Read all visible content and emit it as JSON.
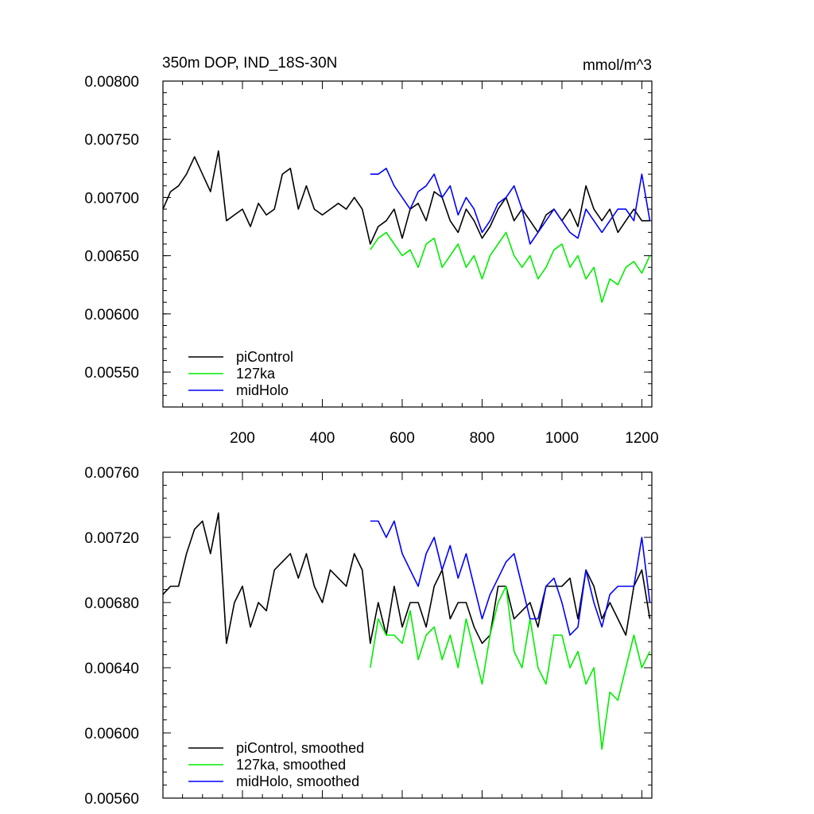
{
  "colors": {
    "piControl": "#000000",
    "127ka": "#00ee00",
    "midHolo": "#0000ff"
  },
  "chart_data": [
    {
      "type": "line",
      "title": "350m DOP, IND_18S-30N",
      "units": "mmol/m^3",
      "xlim": [
        1,
        1225
      ],
      "ylim": [
        0.0052,
        0.008
      ],
      "xticks": [
        200,
        400,
        600,
        800,
        1000,
        1200
      ],
      "yticks": [
        0.0055,
        0.006,
        0.0065,
        0.007,
        0.0075,
        0.008
      ],
      "ytick_labels": [
        "0.00550",
        "0.00600",
        "0.00650",
        "0.00700",
        "0.00750",
        "0.00800"
      ],
      "legend_position": "bottom-left",
      "series": [
        {
          "name": "piControl",
          "color_key": "piControl",
          "x": [
            1,
            20,
            40,
            60,
            80,
            100,
            120,
            140,
            160,
            180,
            200,
            220,
            240,
            260,
            280,
            300,
            320,
            340,
            360,
            380,
            400,
            420,
            440,
            460,
            480,
            500,
            520,
            540,
            560,
            580,
            600,
            620,
            640,
            660,
            680,
            700,
            720,
            740,
            760,
            780,
            800,
            820,
            840,
            860,
            880,
            900,
            920,
            940,
            960,
            980,
            1000,
            1020,
            1040,
            1060,
            1080,
            1100,
            1120,
            1140,
            1160,
            1180,
            1200,
            1220
          ],
          "y": [
            0.0069,
            0.00705,
            0.0071,
            0.0072,
            0.00735,
            0.0072,
            0.00705,
            0.0074,
            0.0068,
            0.00685,
            0.0069,
            0.00675,
            0.00695,
            0.00685,
            0.0069,
            0.0072,
            0.00725,
            0.0069,
            0.0071,
            0.0069,
            0.00685,
            0.0069,
            0.00695,
            0.0069,
            0.007,
            0.0069,
            0.0066,
            0.00675,
            0.0068,
            0.0069,
            0.00665,
            0.0069,
            0.00695,
            0.0068,
            0.00705,
            0.007,
            0.0068,
            0.0067,
            0.0069,
            0.0068,
            0.00665,
            0.00675,
            0.0069,
            0.007,
            0.0068,
            0.0069,
            0.0068,
            0.0067,
            0.00685,
            0.0069,
            0.0068,
            0.0069,
            0.00675,
            0.0071,
            0.0069,
            0.0068,
            0.0069,
            0.0067,
            0.0068,
            0.0069,
            0.0068,
            0.0068
          ]
        },
        {
          "name": "127ka",
          "color_key": "127ka",
          "x": [
            520,
            540,
            560,
            580,
            600,
            620,
            640,
            660,
            680,
            700,
            720,
            740,
            760,
            780,
            800,
            820,
            840,
            860,
            880,
            900,
            920,
            940,
            960,
            980,
            1000,
            1020,
            1040,
            1060,
            1080,
            1100,
            1120,
            1140,
            1160,
            1180,
            1200,
            1220
          ],
          "y": [
            0.00655,
            0.00665,
            0.0067,
            0.0066,
            0.0065,
            0.00655,
            0.0064,
            0.0066,
            0.00665,
            0.0064,
            0.0065,
            0.0066,
            0.0064,
            0.0065,
            0.0063,
            0.0065,
            0.0066,
            0.0067,
            0.0065,
            0.0064,
            0.0065,
            0.0063,
            0.0064,
            0.00655,
            0.0066,
            0.0064,
            0.0065,
            0.0063,
            0.0064,
            0.0061,
            0.0063,
            0.00625,
            0.0064,
            0.00645,
            0.00635,
            0.0065
          ]
        },
        {
          "name": "midHolo",
          "color_key": "midHolo",
          "x": [
            520,
            540,
            560,
            580,
            600,
            620,
            640,
            660,
            680,
            700,
            720,
            740,
            760,
            780,
            800,
            820,
            840,
            860,
            880,
            900,
            920,
            940,
            960,
            980,
            1000,
            1020,
            1040,
            1060,
            1080,
            1100,
            1120,
            1140,
            1160,
            1180,
            1200,
            1220
          ],
          "y": [
            0.0072,
            0.0072,
            0.00725,
            0.0071,
            0.007,
            0.0069,
            0.00705,
            0.0071,
            0.0072,
            0.007,
            0.0071,
            0.00685,
            0.007,
            0.0069,
            0.0067,
            0.0068,
            0.00695,
            0.007,
            0.0071,
            0.0069,
            0.0066,
            0.0067,
            0.0068,
            0.0069,
            0.0068,
            0.0067,
            0.00665,
            0.0069,
            0.0068,
            0.0067,
            0.0068,
            0.0069,
            0.0069,
            0.0068,
            0.0072,
            0.0068
          ]
        }
      ]
    },
    {
      "type": "line",
      "xlim": [
        1,
        1225
      ],
      "ylim": [
        0.0056,
        0.0076
      ],
      "yticks": [
        0.0056,
        0.006,
        0.0064,
        0.0068,
        0.0072,
        0.0076
      ],
      "ytick_labels": [
        "0.00560",
        "0.00600",
        "0.00640",
        "0.00680",
        "0.00720",
        "0.00760"
      ],
      "legend_position": "bottom-left",
      "series": [
        {
          "name": "piControl, smoothed",
          "color_key": "piControl",
          "x": [
            1,
            20,
            40,
            60,
            80,
            100,
            120,
            140,
            160,
            180,
            200,
            220,
            240,
            260,
            280,
            300,
            320,
            340,
            360,
            380,
            400,
            420,
            440,
            460,
            480,
            500,
            520,
            540,
            560,
            580,
            600,
            620,
            640,
            660,
            680,
            700,
            720,
            740,
            760,
            780,
            800,
            820,
            840,
            860,
            880,
            900,
            920,
            940,
            960,
            980,
            1000,
            1020,
            1040,
            1060,
            1080,
            1100,
            1120,
            1140,
            1160,
            1180,
            1200,
            1220
          ],
          "y": [
            0.00685,
            0.0069,
            0.0069,
            0.0071,
            0.00725,
            0.0073,
            0.0071,
            0.00735,
            0.00655,
            0.0068,
            0.0069,
            0.00665,
            0.0068,
            0.00675,
            0.007,
            0.00705,
            0.0071,
            0.00695,
            0.0071,
            0.0069,
            0.0068,
            0.007,
            0.00695,
            0.0069,
            0.0071,
            0.007,
            0.00655,
            0.0068,
            0.0066,
            0.0069,
            0.00665,
            0.0068,
            0.0068,
            0.00665,
            0.0069,
            0.007,
            0.0067,
            0.0068,
            0.0068,
            0.00665,
            0.00655,
            0.0066,
            0.0069,
            0.0069,
            0.0067,
            0.00675,
            0.0068,
            0.00665,
            0.0069,
            0.0069,
            0.0069,
            0.00695,
            0.0067,
            0.007,
            0.0069,
            0.0067,
            0.0068,
            0.0067,
            0.0066,
            0.0069,
            0.007,
            0.0067
          ]
        },
        {
          "name": "127ka, smoothed",
          "color_key": "127ka",
          "x": [
            520,
            540,
            560,
            580,
            600,
            620,
            640,
            660,
            680,
            700,
            720,
            740,
            760,
            780,
            800,
            820,
            840,
            860,
            880,
            900,
            920,
            940,
            960,
            980,
            1000,
            1020,
            1040,
            1060,
            1080,
            1100,
            1120,
            1140,
            1160,
            1180,
            1200,
            1220
          ],
          "y": [
            0.0064,
            0.0067,
            0.0066,
            0.0066,
            0.00655,
            0.00675,
            0.00645,
            0.0066,
            0.00665,
            0.00645,
            0.0066,
            0.0064,
            0.0067,
            0.0065,
            0.0063,
            0.0066,
            0.0068,
            0.0069,
            0.0065,
            0.0064,
            0.0067,
            0.0064,
            0.0063,
            0.0066,
            0.0066,
            0.0064,
            0.0065,
            0.0063,
            0.0064,
            0.0059,
            0.00625,
            0.0062,
            0.0064,
            0.0066,
            0.0064,
            0.0065
          ]
        },
        {
          "name": "midHolo, smoothed",
          "color_key": "midHolo",
          "x": [
            520,
            540,
            560,
            580,
            600,
            620,
            640,
            660,
            680,
            700,
            720,
            740,
            760,
            780,
            800,
            820,
            840,
            860,
            880,
            900,
            920,
            940,
            960,
            980,
            1000,
            1020,
            1040,
            1060,
            1080,
            1100,
            1120,
            1140,
            1160,
            1180,
            1200,
            1220
          ],
          "y": [
            0.0073,
            0.0073,
            0.0072,
            0.0073,
            0.0071,
            0.007,
            0.0069,
            0.0071,
            0.0072,
            0.007,
            0.00715,
            0.00695,
            0.0071,
            0.0069,
            0.0067,
            0.00685,
            0.00695,
            0.00705,
            0.0071,
            0.0069,
            0.0067,
            0.0067,
            0.0069,
            0.00695,
            0.0068,
            0.0066,
            0.00665,
            0.007,
            0.0068,
            0.00665,
            0.00685,
            0.0069,
            0.0069,
            0.0069,
            0.0072,
            0.0068
          ]
        }
      ]
    }
  ]
}
